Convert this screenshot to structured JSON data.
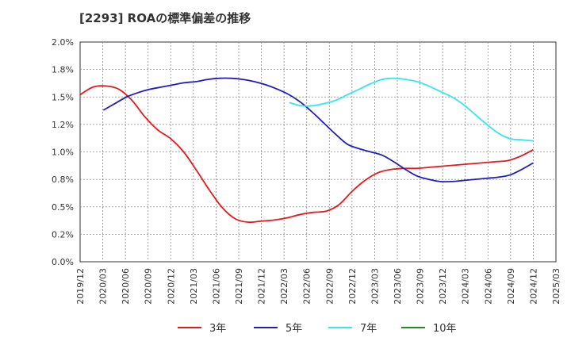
{
  "chart_data": {
    "type": "line",
    "title": "[2293]  ROAの標準偏差の推移",
    "xlabel": "",
    "ylabel": "",
    "ylim": [
      0.0,
      2.0
    ],
    "yticks": [
      "0.0%",
      "0.2%",
      "0.5%",
      "0.8%",
      "1.0%",
      "1.2%",
      "1.5%",
      "1.8%",
      "2.0%"
    ],
    "xticks": [
      "2019/12",
      "2020/03",
      "2020/06",
      "2020/09",
      "2020/12",
      "2021/03",
      "2021/06",
      "2021/09",
      "2021/12",
      "2022/03",
      "2022/06",
      "2022/09",
      "2022/12",
      "2023/03",
      "2023/06",
      "2023/09",
      "2023/12",
      "2024/03",
      "2024/06",
      "2024/09",
      "2024/12",
      "2025/03"
    ],
    "grid": true,
    "legend_position": "bottom",
    "colors": {
      "3年": "#e41a1c",
      "5年": "#1f1fbf",
      "7年": "#33e6f2",
      "10年": "#228b22"
    },
    "series": [
      {
        "name": "3年",
        "color": "#e41a1c",
        "values": [
          1.52,
          1.59,
          1.6,
          1.57,
          1.47,
          1.32,
          1.2,
          1.12,
          1.0,
          0.83,
          0.65,
          0.49,
          0.39,
          0.36,
          0.37,
          0.38,
          0.4,
          0.43,
          0.45,
          0.46,
          0.52,
          0.64,
          0.74,
          0.81,
          0.84,
          0.85,
          0.85,
          0.86,
          0.87,
          0.88,
          0.89,
          0.9,
          0.91,
          0.92,
          0.96,
          1.02
        ]
      },
      {
        "name": "5年",
        "color": "#1f1fbf",
        "values": [
          null,
          null,
          1.38,
          1.44,
          1.5,
          1.54,
          1.57,
          1.59,
          1.61,
          1.63,
          1.64,
          1.66,
          1.67,
          1.67,
          1.66,
          1.64,
          1.61,
          1.57,
          1.52,
          1.45,
          1.36,
          1.26,
          1.16,
          1.07,
          1.03,
          1.0,
          0.97,
          0.91,
          0.84,
          0.78,
          0.75,
          0.73,
          0.73,
          0.74,
          0.75,
          0.76,
          0.77,
          0.79,
          0.84,
          0.9
        ]
      },
      {
        "name": "7年",
        "color": "#33e6f2",
        "values": [
          null,
          null,
          null,
          null,
          null,
          null,
          null,
          null,
          null,
          null,
          null,
          null,
          null,
          null,
          null,
          null,
          null,
          null,
          1.45,
          1.42,
          1.42,
          1.44,
          1.47,
          1.52,
          1.57,
          1.62,
          1.66,
          1.67,
          1.66,
          1.64,
          1.6,
          1.55,
          1.5,
          1.43,
          1.34,
          1.25,
          1.17,
          1.12,
          1.11,
          1.1
        ]
      },
      {
        "name": "10年",
        "color": "#228b22",
        "values": []
      }
    ]
  },
  "legend": [
    {
      "label": "3年",
      "color": "#e41a1c"
    },
    {
      "label": "5年",
      "color": "#1f1fbf"
    },
    {
      "label": "7年",
      "color": "#33e6f2"
    },
    {
      "label": "10年",
      "color": "#228b22"
    }
  ]
}
